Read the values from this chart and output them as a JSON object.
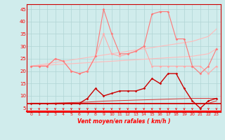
{
  "x": [
    0,
    1,
    2,
    3,
    4,
    5,
    6,
    7,
    8,
    9,
    10,
    11,
    12,
    13,
    14,
    15,
    16,
    17,
    18,
    19,
    20,
    21,
    22,
    23
  ],
  "rafales_high": [
    22,
    22,
    22,
    25,
    24,
    20,
    19,
    20,
    26,
    45,
    35,
    27,
    27,
    28,
    30,
    43,
    44,
    44,
    33,
    33,
    22,
    19,
    22,
    29
  ],
  "rafales_mid": [
    22,
    22,
    22,
    25,
    24,
    20,
    19,
    20,
    26,
    35,
    27,
    26,
    27,
    28,
    30,
    22,
    22,
    22,
    22,
    22,
    22,
    22,
    19,
    22
  ],
  "vent_moyen": [
    7,
    7,
    7,
    7,
    7,
    7,
    7,
    9,
    13,
    10,
    11,
    12,
    12,
    12,
    13,
    17,
    15,
    19,
    19,
    13,
    8,
    5,
    8,
    9
  ],
  "trend_upper1": [
    22,
    22.5,
    23,
    23.5,
    24,
    24.5,
    25,
    25.5,
    26,
    26.5,
    27,
    27.5,
    28,
    28.5,
    29,
    29.5,
    30,
    30.5,
    31,
    31.5,
    32,
    33,
    34,
    37
  ],
  "trend_upper2": [
    22,
    22.2,
    22.4,
    22.6,
    22.8,
    23,
    23.2,
    23.4,
    23.6,
    23.8,
    24,
    24.2,
    24.4,
    24.6,
    24.8,
    25,
    25.2,
    25.4,
    25.6,
    25.8,
    26,
    26.5,
    27,
    29
  ],
  "trend_lower1": [
    7,
    7,
    7,
    7.1,
    7.2,
    7.3,
    7.4,
    7.5,
    7.7,
    7.9,
    8,
    8.1,
    8.2,
    8.3,
    8.4,
    8.5,
    8.6,
    8.7,
    8.8,
    8.9,
    9,
    9,
    9,
    9
  ],
  "trend_lower2": [
    7,
    7,
    7,
    7,
    7,
    7,
    7,
    7,
    7,
    7,
    7,
    7,
    7,
    7,
    7,
    7,
    7,
    7,
    7,
    7,
    7,
    7,
    7,
    8
  ],
  "bg_color": "#d0ecec",
  "grid_color": "#b0d4d4",
  "color_rafales_high": "#ff7777",
  "color_rafales_mid": "#ffaaaa",
  "color_vent_moyen": "#cc0000",
  "color_trend_upper": "#ffbbbb",
  "color_trend_lower": "#dd3333",
  "xlabel": "Vent moyen/en rafales ( km/h )",
  "ylabel_ticks": [
    5,
    10,
    15,
    20,
    25,
    30,
    35,
    40,
    45
  ],
  "xlim": [
    -0.5,
    23.5
  ],
  "ylim": [
    3.5,
    47
  ]
}
